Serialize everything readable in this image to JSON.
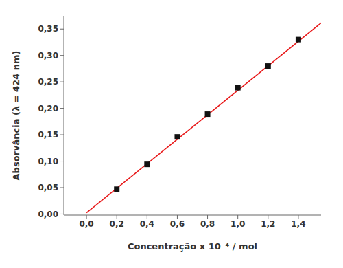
{
  "chart_data": {
    "type": "scatter",
    "xlabel": "Concentração x 10⁻⁴  /  mol",
    "ylabel": "Absorvância (λ = 424 nm)",
    "xlim": [
      -0.15,
      1.55
    ],
    "ylim": [
      -0.002,
      0.375
    ],
    "xticks": [
      {
        "value": 0.0,
        "label": "0,0"
      },
      {
        "value": 0.2,
        "label": "0,2"
      },
      {
        "value": 0.4,
        "label": "0,4"
      },
      {
        "value": 0.6,
        "label": "0,6"
      },
      {
        "value": 0.8,
        "label": "0,8"
      },
      {
        "value": 1.0,
        "label": "1,0"
      },
      {
        "value": 1.2,
        "label": "1,2"
      },
      {
        "value": 1.4,
        "label": "1,4"
      }
    ],
    "yticks": [
      {
        "value": 0.0,
        "label": "0,00"
      },
      {
        "value": 0.05,
        "label": "0,05"
      },
      {
        "value": 0.1,
        "label": "0,10"
      },
      {
        "value": 0.15,
        "label": "0,15"
      },
      {
        "value": 0.2,
        "label": "0,20"
      },
      {
        "value": 0.25,
        "label": "0,25"
      },
      {
        "value": 0.3,
        "label": "0,30"
      },
      {
        "value": 0.35,
        "label": "0,35"
      }
    ],
    "grid": false,
    "series": [
      {
        "type": "line",
        "color": "#e8191a",
        "x": [
          0.0,
          1.55
        ],
        "values": [
          0.0023,
          0.361435
        ]
      },
      {
        "type": "scatter",
        "color": "#111111",
        "marker": "square",
        "x": [
          0.2,
          0.4,
          0.6,
          0.8,
          1.0,
          1.2,
          1.4
        ],
        "values": [
          0.047,
          0.094,
          0.146,
          0.189,
          0.239,
          0.28,
          0.33
        ]
      }
    ]
  }
}
